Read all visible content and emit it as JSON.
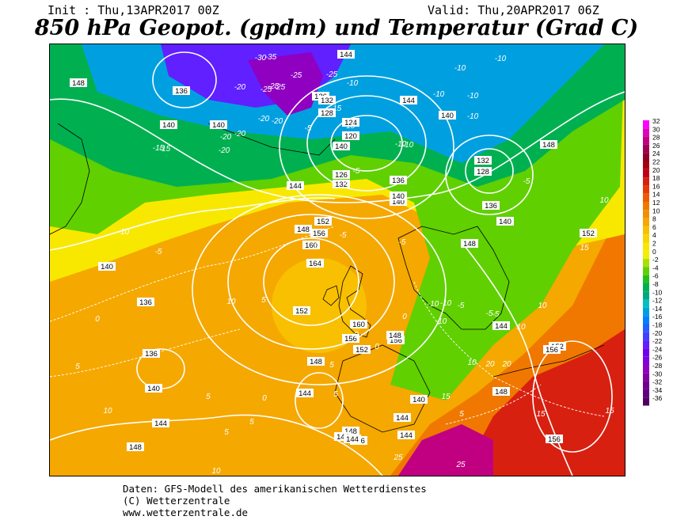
{
  "header": {
    "init": "Init : Thu,13APR2017 00Z",
    "valid": "Valid: Thu,20APR2017 06Z",
    "title": "850 hPa Geopot. (gpdm) und Temperatur (Grad C)"
  },
  "legend": {
    "values": [
      "32",
      "30",
      "28",
      "26",
      "24",
      "22",
      "20",
      "18",
      "16",
      "14",
      "12",
      "10",
      "8",
      "6",
      "4",
      "2",
      "0",
      "-2",
      "-4",
      "-6",
      "-8",
      "-10",
      "-12",
      "-14",
      "-16",
      "-18",
      "-20",
      "-22",
      "-24",
      "-26",
      "-28",
      "-30",
      "-32",
      "-34",
      "-36"
    ],
    "colors": [
      "#ff00ff",
      "#e000c0",
      "#c00080",
      "#a00050",
      "#900028",
      "#a80010",
      "#c00018",
      "#d82010",
      "#e83a08",
      "#f05a00",
      "#f07800",
      "#f09000",
      "#f5a800",
      "#f8c000",
      "#f8d400",
      "#f8e800",
      "#f0f000",
      "#a8e000",
      "#60d000",
      "#20c020",
      "#00b050",
      "#00a880",
      "#00c0c0",
      "#00a0e0",
      "#0080ff",
      "#2060ff",
      "#4040ff",
      "#6020ff",
      "#7000f0",
      "#8000e0",
      "#9000c0",
      "#8000a0",
      "#700090",
      "#600080",
      "#500060"
    ]
  },
  "labels": {
    "geopotential": [
      {
        "text": "148"
      },
      {
        "text": "136"
      },
      {
        "text": "140"
      },
      {
        "text": "140"
      },
      {
        "text": "144"
      },
      {
        "text": "136"
      },
      {
        "text": "132"
      },
      {
        "text": "128"
      },
      {
        "text": "124"
      },
      {
        "text": "120"
      },
      {
        "text": "144"
      },
      {
        "text": "140"
      },
      {
        "text": "136"
      },
      {
        "text": "140"
      },
      {
        "text": "132"
      },
      {
        "text": "128"
      },
      {
        "text": "136"
      },
      {
        "text": "140"
      },
      {
        "text": "148"
      },
      {
        "text": "152"
      },
      {
        "text": "156"
      },
      {
        "text": "160"
      },
      {
        "text": "164"
      },
      {
        "text": "144"
      },
      {
        "text": "148"
      },
      {
        "text": "152"
      },
      {
        "text": "156"
      },
      {
        "text": "160"
      },
      {
        "text": "156"
      },
      {
        "text": "152"
      },
      {
        "text": "148"
      },
      {
        "text": "144"
      },
      {
        "text": "148"
      },
      {
        "text": "152"
      },
      {
        "text": "148"
      },
      {
        "text": "144"
      },
      {
        "text": "140"
      },
      {
        "text": "136"
      },
      {
        "text": "136"
      },
      {
        "text": "140"
      },
      {
        "text": "144"
      },
      {
        "text": "148"
      },
      {
        "text": "140"
      },
      {
        "text": "144"
      },
      {
        "text": "148"
      },
      {
        "text": "144"
      },
      {
        "text": "152"
      },
      {
        "text": "156"
      },
      {
        "text": "156"
      },
      {
        "text": "148"
      },
      {
        "text": "136"
      },
      {
        "text": "144"
      },
      {
        "text": "144"
      },
      {
        "text": "140"
      },
      {
        "text": "132"
      },
      {
        "text": "126"
      },
      {
        "text": "140"
      }
    ],
    "temperature": [
      {
        "text": "-30"
      },
      {
        "text": "-25"
      },
      {
        "text": "-25"
      },
      {
        "text": "-20"
      },
      {
        "text": "-25"
      },
      {
        "text": "-25"
      },
      {
        "text": "-20"
      },
      {
        "text": "-20"
      },
      {
        "text": "-20"
      },
      {
        "text": "-15"
      },
      {
        "text": "-15"
      },
      {
        "text": "-10"
      },
      {
        "text": "-10"
      },
      {
        "text": "-10"
      },
      {
        "text": "-10"
      },
      {
        "text": "-10"
      },
      {
        "text": "-10"
      },
      {
        "text": "-5"
      },
      {
        "text": "-10"
      },
      {
        "text": "-5"
      },
      {
        "text": "-5"
      },
      {
        "text": "-5"
      },
      {
        "text": "-10"
      },
      {
        "text": "-5"
      },
      {
        "text": "-10"
      },
      {
        "text": "-15"
      },
      {
        "text": "-15"
      },
      {
        "text": "-10"
      },
      {
        "text": "-5"
      },
      {
        "text": "-10"
      },
      {
        "text": "-5"
      },
      {
        "text": "0"
      },
      {
        "text": "0"
      },
      {
        "text": "0"
      },
      {
        "text": "0"
      },
      {
        "text": "5"
      },
      {
        "text": "5"
      },
      {
        "text": "5"
      },
      {
        "text": "5"
      },
      {
        "text": "5"
      },
      {
        "text": "5"
      },
      {
        "text": "10"
      },
      {
        "text": "10"
      },
      {
        "text": "10"
      },
      {
        "text": "10"
      },
      {
        "text": "10"
      },
      {
        "text": "10"
      },
      {
        "text": "15"
      },
      {
        "text": "15"
      },
      {
        "text": "15"
      },
      {
        "text": "15"
      },
      {
        "text": "20"
      },
      {
        "text": "20"
      },
      {
        "text": "25"
      },
      {
        "text": "25"
      },
      {
        "text": "-25"
      },
      {
        "text": "-20"
      },
      {
        "text": "-5"
      },
      {
        "text": "-20"
      },
      {
        "text": "-35"
      },
      {
        "text": "0"
      },
      {
        "text": "-5"
      },
      {
        "text": "5"
      },
      {
        "text": "10"
      },
      {
        "text": "-10"
      },
      {
        "text": "-5"
      },
      {
        "text": "0"
      },
      {
        "text": "5"
      }
    ]
  },
  "footer": {
    "line1": "Daten: GFS-Modell des amerikanischen Wetterdienstes",
    "line2": "(C) Wetterzentrale",
    "line3": "www.wetterzentrale.de"
  }
}
